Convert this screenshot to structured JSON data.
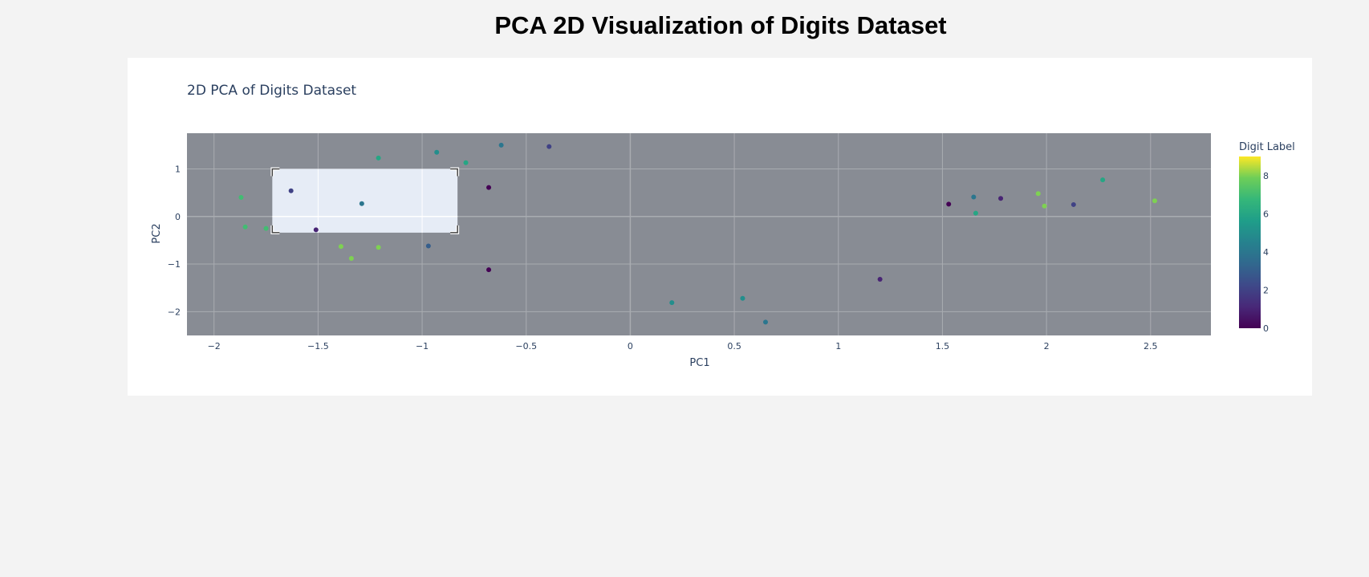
{
  "page": {
    "title": "PCA 2D Visualization of Digits Dataset"
  },
  "chart_data": {
    "type": "scatter",
    "title": "2D PCA of Digits Dataset",
    "xlabel": "PC1",
    "ylabel": "PC2",
    "xlim": [
      -2.13,
      2.79
    ],
    "ylim": [
      -2.5,
      1.75
    ],
    "x_ticks": [
      -2,
      -1.5,
      -1,
      -0.5,
      0,
      0.5,
      1,
      1.5,
      2,
      2.5
    ],
    "y_ticks": [
      -2,
      -1,
      0,
      1
    ],
    "grid": true,
    "plot_bgcolor": "#888c94",
    "colorbar": {
      "title": "Digit Label",
      "colorscale": "Viridis",
      "range": [
        0,
        9
      ],
      "ticks": [
        0,
        2,
        4,
        6,
        8
      ]
    },
    "selection_box": {
      "x_range": [
        -1.72,
        -0.83
      ],
      "y_range": [
        -0.34,
        1.0
      ]
    },
    "points": [
      {
        "x": -1.87,
        "y": 0.4,
        "label": 7
      },
      {
        "x": -1.85,
        "y": -0.22,
        "label": 7
      },
      {
        "x": -1.75,
        "y": -0.25,
        "label": 7
      },
      {
        "x": -1.63,
        "y": 0.54,
        "label": 2
      },
      {
        "x": -1.51,
        "y": -0.28,
        "label": 1
      },
      {
        "x": -1.39,
        "y": -0.63,
        "label": 8
      },
      {
        "x": -1.34,
        "y": -0.88,
        "label": 8
      },
      {
        "x": -1.29,
        "y": 0.27,
        "label": 4
      },
      {
        "x": -1.21,
        "y": 1.23,
        "label": 6
      },
      {
        "x": -1.21,
        "y": -0.65,
        "label": 8
      },
      {
        "x": -0.97,
        "y": -0.62,
        "label": 3
      },
      {
        "x": -0.93,
        "y": 1.35,
        "label": 5
      },
      {
        "x": -0.79,
        "y": 1.13,
        "label": 6
      },
      {
        "x": -0.68,
        "y": 0.61,
        "label": 0
      },
      {
        "x": -0.68,
        "y": -1.12,
        "label": 0
      },
      {
        "x": -0.62,
        "y": 1.5,
        "label": 4
      },
      {
        "x": -0.39,
        "y": 1.47,
        "label": 2
      },
      {
        "x": 0.2,
        "y": -1.81,
        "label": 5
      },
      {
        "x": 0.54,
        "y": -1.72,
        "label": 5
      },
      {
        "x": 0.65,
        "y": -2.22,
        "label": 4
      },
      {
        "x": 1.2,
        "y": -1.32,
        "label": 1
      },
      {
        "x": 1.53,
        "y": 0.26,
        "label": 0
      },
      {
        "x": 1.65,
        "y": 0.41,
        "label": 4
      },
      {
        "x": 1.66,
        "y": 0.07,
        "label": 6
      },
      {
        "x": 1.78,
        "y": 0.38,
        "label": 1
      },
      {
        "x": 1.96,
        "y": 0.48,
        "label": 8
      },
      {
        "x": 1.99,
        "y": 0.22,
        "label": 8
      },
      {
        "x": 2.13,
        "y": 0.25,
        "label": 2
      },
      {
        "x": 2.27,
        "y": 0.77,
        "label": 6
      },
      {
        "x": 2.52,
        "y": 0.33,
        "label": 8
      }
    ]
  }
}
